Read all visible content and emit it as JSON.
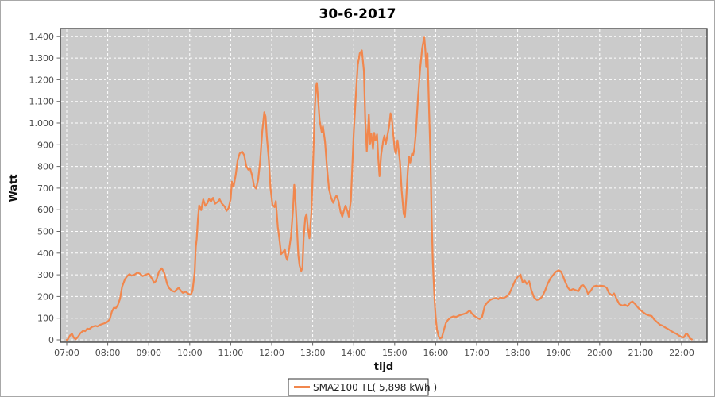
{
  "window": {
    "background": "#ffffff",
    "border_color": "#a8a8a8"
  },
  "colors": {
    "plot_background": "#cbcbcb",
    "gridline": "#ffffff",
    "plot_border": "#3a3a3a",
    "series_line": "#f1874d",
    "tick_label": "#4a4a4a",
    "title_text": "#000000",
    "legend_border": "#333333",
    "legend_background": "#ffffff"
  },
  "chart_data": {
    "type": "line",
    "title": "30-6-2017",
    "xlabel": "tijd",
    "ylabel": "Watt",
    "grid": "white dashed gridlines on gray plot background",
    "legend": {
      "label": "SMA2100 TL( 5,898 kWh )",
      "position": "bottom-center",
      "line_color": "#f1874d"
    },
    "ylim": [
      0,
      1400
    ],
    "y_ticks": [
      0,
      100,
      200,
      300,
      400,
      500,
      600,
      700,
      800,
      900,
      1000,
      1100,
      1200,
      1300,
      1400
    ],
    "y_tick_labels": [
      "0",
      "100",
      "200",
      "300",
      "400",
      "500",
      "600",
      "700",
      "800",
      "900",
      "1.000",
      "1.100",
      "1.200",
      "1.300",
      "1.400"
    ],
    "x_tick_hours": [
      7,
      8,
      9,
      10,
      11,
      12,
      13,
      14,
      15,
      16,
      17,
      18,
      19,
      20,
      21,
      22
    ],
    "x_tick_labels": [
      "07:00",
      "08:00",
      "09:00",
      "10:00",
      "11:00",
      "12:00",
      "13:00",
      "14:00",
      "15:00",
      "16:00",
      "17:00",
      "18:00",
      "19:00",
      "20:00",
      "21:00",
      "22:00"
    ],
    "xlim_hours": [
      6.845,
      22.62
    ],
    "series": [
      {
        "name": "SMA2100 TL( 5,898 kWh )",
        "color": "#f1874d",
        "points": [
          [
            7.0,
            0
          ],
          [
            7.03,
            3
          ],
          [
            7.08,
            20
          ],
          [
            7.13,
            28
          ],
          [
            7.17,
            10
          ],
          [
            7.22,
            3
          ],
          [
            7.28,
            15
          ],
          [
            7.33,
            30
          ],
          [
            7.4,
            42
          ],
          [
            7.45,
            40
          ],
          [
            7.5,
            52
          ],
          [
            7.55,
            50
          ],
          [
            7.62,
            60
          ],
          [
            7.7,
            65
          ],
          [
            7.75,
            62
          ],
          [
            7.82,
            70
          ],
          [
            7.9,
            75
          ],
          [
            7.97,
            80
          ],
          [
            8.05,
            95
          ],
          [
            8.1,
            130
          ],
          [
            8.15,
            148
          ],
          [
            8.2,
            146
          ],
          [
            8.25,
            162
          ],
          [
            8.3,
            190
          ],
          [
            8.35,
            245
          ],
          [
            8.42,
            280
          ],
          [
            8.48,
            295
          ],
          [
            8.53,
            303
          ],
          [
            8.58,
            296
          ],
          [
            8.65,
            300
          ],
          [
            8.72,
            310
          ],
          [
            8.78,
            306
          ],
          [
            8.85,
            294
          ],
          [
            8.92,
            300
          ],
          [
            9.0,
            305
          ],
          [
            9.08,
            282
          ],
          [
            9.13,
            263
          ],
          [
            9.18,
            272
          ],
          [
            9.25,
            315
          ],
          [
            9.32,
            330
          ],
          [
            9.38,
            308
          ],
          [
            9.45,
            258
          ],
          [
            9.5,
            238
          ],
          [
            9.57,
            226
          ],
          [
            9.63,
            222
          ],
          [
            9.68,
            232
          ],
          [
            9.73,
            240
          ],
          [
            9.78,
            228
          ],
          [
            9.83,
            217
          ],
          [
            9.9,
            222
          ],
          [
            9.97,
            212
          ],
          [
            10.03,
            208
          ],
          [
            10.07,
            228
          ],
          [
            10.12,
            310
          ],
          [
            10.15,
            430
          ],
          [
            10.17,
            465
          ],
          [
            10.2,
            555
          ],
          [
            10.23,
            620
          ],
          [
            10.28,
            598
          ],
          [
            10.33,
            648
          ],
          [
            10.38,
            618
          ],
          [
            10.43,
            630
          ],
          [
            10.47,
            650
          ],
          [
            10.52,
            638
          ],
          [
            10.57,
            655
          ],
          [
            10.62,
            628
          ],
          [
            10.68,
            636
          ],
          [
            10.73,
            648
          ],
          [
            10.78,
            630
          ],
          [
            10.85,
            615
          ],
          [
            10.9,
            595
          ],
          [
            10.95,
            608
          ],
          [
            11.0,
            650
          ],
          [
            11.03,
            730
          ],
          [
            11.07,
            706
          ],
          [
            11.12,
            758
          ],
          [
            11.17,
            830
          ],
          [
            11.22,
            860
          ],
          [
            11.28,
            868
          ],
          [
            11.33,
            852
          ],
          [
            11.38,
            802
          ],
          [
            11.43,
            785
          ],
          [
            11.47,
            792
          ],
          [
            11.52,
            760
          ],
          [
            11.57,
            710
          ],
          [
            11.62,
            698
          ],
          [
            11.67,
            740
          ],
          [
            11.72,
            830
          ],
          [
            11.77,
            960
          ],
          [
            11.82,
            1050
          ],
          [
            11.85,
            1030
          ],
          [
            11.88,
            940
          ],
          [
            11.93,
            830
          ],
          [
            11.97,
            700
          ],
          [
            12.02,
            622
          ],
          [
            12.07,
            612
          ],
          [
            12.1,
            640
          ],
          [
            12.15,
            520
          ],
          [
            12.18,
            477
          ],
          [
            12.23,
            395
          ],
          [
            12.28,
            405
          ],
          [
            12.32,
            418
          ],
          [
            12.35,
            382
          ],
          [
            12.38,
            368
          ],
          [
            12.43,
            425
          ],
          [
            12.47,
            478
          ],
          [
            12.52,
            600
          ],
          [
            12.55,
            715
          ],
          [
            12.58,
            640
          ],
          [
            12.62,
            500
          ],
          [
            12.65,
            390
          ],
          [
            12.68,
            342
          ],
          [
            12.72,
            318
          ],
          [
            12.75,
            332
          ],
          [
            12.78,
            470
          ],
          [
            12.82,
            565
          ],
          [
            12.85,
            580
          ],
          [
            12.88,
            520
          ],
          [
            12.92,
            468
          ],
          [
            12.97,
            590
          ],
          [
            13.0,
            760
          ],
          [
            13.05,
            1060
          ],
          [
            13.08,
            1165
          ],
          [
            13.1,
            1185
          ],
          [
            13.13,
            1115
          ],
          [
            13.17,
            1010
          ],
          [
            13.22,
            958
          ],
          [
            13.25,
            985
          ],
          [
            13.3,
            915
          ],
          [
            13.35,
            790
          ],
          [
            13.4,
            695
          ],
          [
            13.45,
            655
          ],
          [
            13.5,
            632
          ],
          [
            13.55,
            655
          ],
          [
            13.58,
            666
          ],
          [
            13.63,
            640
          ],
          [
            13.68,
            590
          ],
          [
            13.72,
            568
          ],
          [
            13.77,
            602
          ],
          [
            13.8,
            619
          ],
          [
            13.85,
            592
          ],
          [
            13.88,
            568
          ],
          [
            13.93,
            640
          ],
          [
            13.97,
            820
          ],
          [
            14.0,
            950
          ],
          [
            14.05,
            1120
          ],
          [
            14.1,
            1270
          ],
          [
            14.15,
            1322
          ],
          [
            14.2,
            1335
          ],
          [
            14.25,
            1240
          ],
          [
            14.28,
            1020
          ],
          [
            14.32,
            870
          ],
          [
            14.37,
            1040
          ],
          [
            14.4,
            905
          ],
          [
            14.43,
            950
          ],
          [
            14.47,
            880
          ],
          [
            14.5,
            955
          ],
          [
            14.53,
            920
          ],
          [
            14.57,
            948
          ],
          [
            14.6,
            835
          ],
          [
            14.63,
            755
          ],
          [
            14.67,
            855
          ],
          [
            14.72,
            920
          ],
          [
            14.75,
            942
          ],
          [
            14.78,
            902
          ],
          [
            14.82,
            940
          ],
          [
            14.87,
            990
          ],
          [
            14.9,
            1045
          ],
          [
            14.93,
            1020
          ],
          [
            14.97,
            940
          ],
          [
            15.0,
            880
          ],
          [
            15.03,
            858
          ],
          [
            15.07,
            920
          ],
          [
            15.1,
            868
          ],
          [
            15.13,
            820
          ],
          [
            15.17,
            690
          ],
          [
            15.22,
            580
          ],
          [
            15.25,
            568
          ],
          [
            15.28,
            650
          ],
          [
            15.32,
            780
          ],
          [
            15.35,
            845
          ],
          [
            15.38,
            818
          ],
          [
            15.42,
            858
          ],
          [
            15.45,
            852
          ],
          [
            15.48,
            880
          ],
          [
            15.52,
            960
          ],
          [
            15.57,
            1120
          ],
          [
            15.62,
            1250
          ],
          [
            15.67,
            1345
          ],
          [
            15.72,
            1398
          ],
          [
            15.75,
            1330
          ],
          [
            15.77,
            1258
          ],
          [
            15.8,
            1320
          ],
          [
            15.83,
            1120
          ],
          [
            15.87,
            860
          ],
          [
            15.9,
            580
          ],
          [
            15.93,
            360
          ],
          [
            15.97,
            190
          ],
          [
            16.0,
            105
          ],
          [
            16.03,
            48
          ],
          [
            16.07,
            18
          ],
          [
            16.1,
            6
          ],
          [
            16.15,
            10
          ],
          [
            16.2,
            45
          ],
          [
            16.25,
            78
          ],
          [
            16.3,
            92
          ],
          [
            16.37,
            103
          ],
          [
            16.43,
            108
          ],
          [
            16.5,
            106
          ],
          [
            16.57,
            112
          ],
          [
            16.63,
            116
          ],
          [
            16.7,
            120
          ],
          [
            16.77,
            126
          ],
          [
            16.83,
            136
          ],
          [
            16.88,
            122
          ],
          [
            16.93,
            112
          ],
          [
            17.0,
            103
          ],
          [
            17.07,
            96
          ],
          [
            17.13,
            104
          ],
          [
            17.2,
            158
          ],
          [
            17.27,
            174
          ],
          [
            17.33,
            184
          ],
          [
            17.4,
            190
          ],
          [
            17.47,
            193
          ],
          [
            17.53,
            188
          ],
          [
            17.58,
            196
          ],
          [
            17.65,
            192
          ],
          [
            17.73,
            200
          ],
          [
            17.8,
            214
          ],
          [
            17.87,
            244
          ],
          [
            17.93,
            270
          ],
          [
            18.0,
            290
          ],
          [
            18.07,
            301
          ],
          [
            18.12,
            266
          ],
          [
            18.17,
            273
          ],
          [
            18.22,
            258
          ],
          [
            18.28,
            270
          ],
          [
            18.33,
            232
          ],
          [
            18.4,
            196
          ],
          [
            18.47,
            184
          ],
          [
            18.53,
            187
          ],
          [
            18.6,
            200
          ],
          [
            18.67,
            228
          ],
          [
            18.73,
            258
          ],
          [
            18.8,
            284
          ],
          [
            18.87,
            300
          ],
          [
            18.93,
            314
          ],
          [
            19.0,
            321
          ],
          [
            19.05,
            316
          ],
          [
            19.1,
            298
          ],
          [
            19.15,
            272
          ],
          [
            19.22,
            242
          ],
          [
            19.28,
            228
          ],
          [
            19.35,
            234
          ],
          [
            19.42,
            229
          ],
          [
            19.48,
            224
          ],
          [
            19.55,
            250
          ],
          [
            19.6,
            252
          ],
          [
            19.67,
            234
          ],
          [
            19.72,
            211
          ],
          [
            19.78,
            226
          ],
          [
            19.85,
            246
          ],
          [
            19.92,
            250
          ],
          [
            19.97,
            247
          ],
          [
            20.03,
            250
          ],
          [
            20.1,
            248
          ],
          [
            20.17,
            240
          ],
          [
            20.23,
            215
          ],
          [
            20.3,
            205
          ],
          [
            20.35,
            214
          ],
          [
            20.42,
            186
          ],
          [
            20.48,
            165
          ],
          [
            20.55,
            158
          ],
          [
            20.62,
            162
          ],
          [
            20.68,
            155
          ],
          [
            20.75,
            172
          ],
          [
            20.8,
            177
          ],
          [
            20.87,
            164
          ],
          [
            20.93,
            150
          ],
          [
            21.0,
            136
          ],
          [
            21.07,
            126
          ],
          [
            21.13,
            118
          ],
          [
            21.2,
            113
          ],
          [
            21.27,
            110
          ],
          [
            21.33,
            94
          ],
          [
            21.4,
            82
          ],
          [
            21.47,
            70
          ],
          [
            21.53,
            66
          ],
          [
            21.6,
            57
          ],
          [
            21.67,
            50
          ],
          [
            21.73,
            42
          ],
          [
            21.8,
            34
          ],
          [
            21.87,
            28
          ],
          [
            21.93,
            20
          ],
          [
            22.0,
            13
          ],
          [
            22.05,
            11
          ],
          [
            22.1,
            26
          ],
          [
            22.13,
            29
          ],
          [
            22.17,
            17
          ],
          [
            22.2,
            7
          ],
          [
            22.25,
            2
          ]
        ]
      }
    ]
  }
}
